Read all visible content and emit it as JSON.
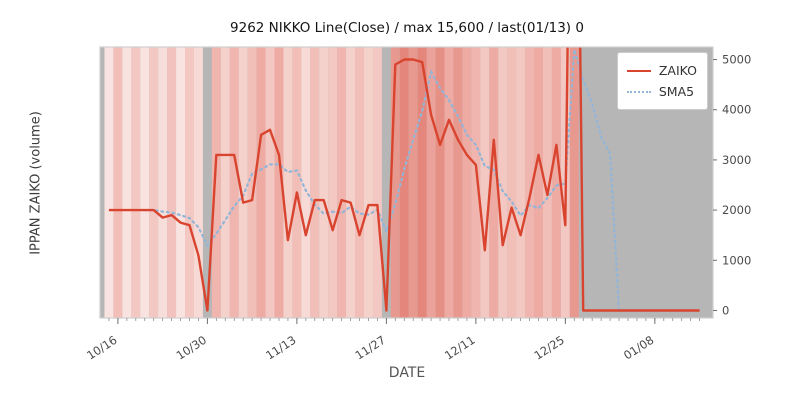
{
  "title": "9262 NIKKO Line(Close) / max 15,600 / last(01/13) 0",
  "axes": {
    "xlabel": "DATE",
    "ylabel": "IPPAN ZAIKO (volume)"
  },
  "legend": [
    {
      "label": "ZAIKO",
      "style": "solid",
      "color": "#d9442f"
    },
    {
      "label": "SMA5",
      "style": "dotted",
      "color": "#92b5d8"
    }
  ],
  "chart_data": {
    "type": "line",
    "title": "9262 NIKKO Line(Close) / max 15,600 / last(01/13) 0",
    "xlabel": "DATE",
    "ylabel": "IPPAN ZAIKO (volume)",
    "x": [
      "10/13",
      "10/16",
      "10/17",
      "10/18",
      "10/19",
      "10/20",
      "10/23",
      "10/24",
      "10/25",
      "10/26",
      "10/27",
      "10/30",
      "10/31",
      "11/01",
      "11/02",
      "11/03",
      "11/06",
      "11/07",
      "11/08",
      "11/09",
      "11/10",
      "11/13",
      "11/14",
      "11/15",
      "11/16",
      "11/17",
      "11/20",
      "11/21",
      "11/22",
      "11/23",
      "11/24",
      "11/27",
      "11/28",
      "11/29",
      "11/30",
      "12/01",
      "12/04",
      "12/05",
      "12/06",
      "12/07",
      "12/08",
      "12/11",
      "12/12",
      "12/13",
      "12/14",
      "12/15",
      "12/18",
      "12/19",
      "12/20",
      "12/21",
      "12/22",
      "12/25",
      "12/26",
      "12/27",
      "12/28",
      "12/29",
      "01/01",
      "01/02",
      "01/03",
      "01/04",
      "01/05",
      "01/08",
      "01/09",
      "01/10",
      "01/11",
      "01/12",
      "01/13"
    ],
    "series": [
      {
        "name": "ZAIKO",
        "color": "#d9442f",
        "style": "solid",
        "values": [
          2000,
          2000,
          2000,
          2000,
          2000,
          2000,
          1850,
          1900,
          1750,
          1700,
          1100,
          0,
          3100,
          3100,
          3100,
          2150,
          2200,
          3500,
          3600,
          3100,
          1400,
          2350,
          1500,
          2200,
          2200,
          1600,
          2200,
          2150,
          1500,
          2100,
          2100,
          0,
          4900,
          5000,
          5000,
          4950,
          3900,
          3300,
          3800,
          3400,
          3100,
          2900,
          1200,
          3400,
          1300,
          2050,
          1500,
          2250,
          3100,
          2300,
          3300,
          1700,
          15600,
          0,
          0,
          0,
          0,
          0,
          0,
          0,
          0,
          0,
          0,
          0,
          0,
          0,
          0
        ]
      },
      {
        "name": "SMA5",
        "color": "#92b5d8",
        "style": "dotted",
        "derived": "5-period moving average of ZAIKO"
      }
    ],
    "ylim": [
      -150,
      5250
    ],
    "yticks": [
      0,
      1000,
      2000,
      3000,
      4000,
      5000
    ],
    "yticks_side": "right",
    "xtick_indices": [
      1,
      11,
      21,
      31,
      41,
      51,
      61
    ],
    "xtick_labels": [
      "10/16",
      "10/30",
      "11/13",
      "11/27",
      "12/11",
      "12/25",
      "01/08"
    ],
    "grid": false,
    "legend_position": "upper right",
    "background": {
      "gray": "#b6b6b6",
      "stripe_color": "#d64534",
      "stripe_alpha": [
        0.15,
        0.35,
        0.15,
        0.3,
        0.15,
        0.3,
        0.18,
        0.32,
        0.15,
        0.3,
        0.2,
        null,
        0.4,
        0.25,
        0.4,
        0.25,
        0.35,
        0.45,
        0.3,
        0.45,
        0.25,
        0.35,
        0.2,
        0.35,
        0.25,
        0.3,
        0.4,
        0.25,
        0.35,
        0.25,
        0.3,
        null,
        0.55,
        0.65,
        0.55,
        0.65,
        0.5,
        0.6,
        0.45,
        0.55,
        0.45,
        0.4,
        0.3,
        0.45,
        0.3,
        0.35,
        0.3,
        0.4,
        0.45,
        0.35,
        0.45,
        0.3,
        0.55,
        null,
        null,
        null,
        null,
        null,
        null,
        null,
        null,
        null,
        null,
        null,
        null,
        null,
        null
      ]
    }
  }
}
